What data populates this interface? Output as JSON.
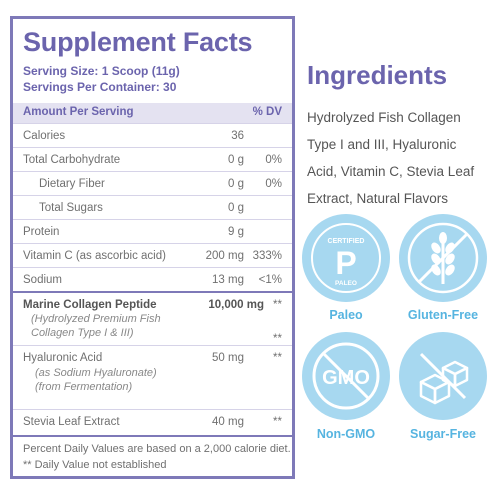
{
  "facts": {
    "title": "Supplement Facts",
    "serving_size": "Serving Size: 1 Scoop (11g)",
    "servings_per_container": "Servings Per Container: 30",
    "header_left": "Amount Per Serving",
    "header_right": "% DV",
    "rows": [
      {
        "label": "Calories",
        "amount": "36",
        "dv": ""
      },
      {
        "label": "Total Carbohydrate",
        "amount": "0 g",
        "dv": "0%"
      },
      {
        "label": "Dietary Fiber",
        "amount": "0 g",
        "dv": "0%"
      },
      {
        "label": "Total Sugars",
        "amount": "0 g",
        "dv": ""
      },
      {
        "label": "Protein",
        "amount": "9 g",
        "dv": ""
      },
      {
        "label": "Vitamin C (as ascorbic acid)",
        "amount": "200 mg",
        "dv": "333%"
      },
      {
        "label": "Sodium",
        "amount": "13 mg",
        "dv": "<1%"
      },
      {
        "label": "Marine Collagen Peptide",
        "amount": "10,000 mg",
        "dv": "**",
        "sub1": "(Hydrolyzed Premium Fish",
        "sub2": "Collagen Type I & III)",
        "dv_sub": "**"
      },
      {
        "label": "Hyaluronic Acid",
        "amount": "50 mg",
        "dv": "**",
        "sub1": "(as Sodium Hyaluronate)",
        "sub2": "(from Fermentation)"
      },
      {
        "label": "Stevia Leaf Extract",
        "amount": "40 mg",
        "dv": "**"
      }
    ],
    "footnote1": "Percent Daily Values are based on a 2,000 calorie diet.",
    "footnote2": "** Daily Value not established"
  },
  "ingredients": {
    "title": "Ingredients",
    "line1": "Hydrolyzed Fish Collagen",
    "line2": "Type I and III, Hyaluronic",
    "line3": "Acid, Vitamin C, Stevia Leaf",
    "line4": "Extract, Natural Flavors"
  },
  "badges": {
    "paleo": {
      "label": "Paleo",
      "top_text": "CERTIFIED",
      "letter": "P",
      "bottom_text": "PALEO"
    },
    "gluten_free": {
      "label": "Gluten-Free"
    },
    "non_gmo": {
      "label": "Non-GMO",
      "text": "GMO"
    },
    "sugar_free": {
      "label": "Sugar-Free"
    }
  },
  "colors": {
    "accent_purple": "#6b64ad",
    "badge_blue": "#a7d8f0",
    "badge_label_blue": "#56b4e0"
  }
}
